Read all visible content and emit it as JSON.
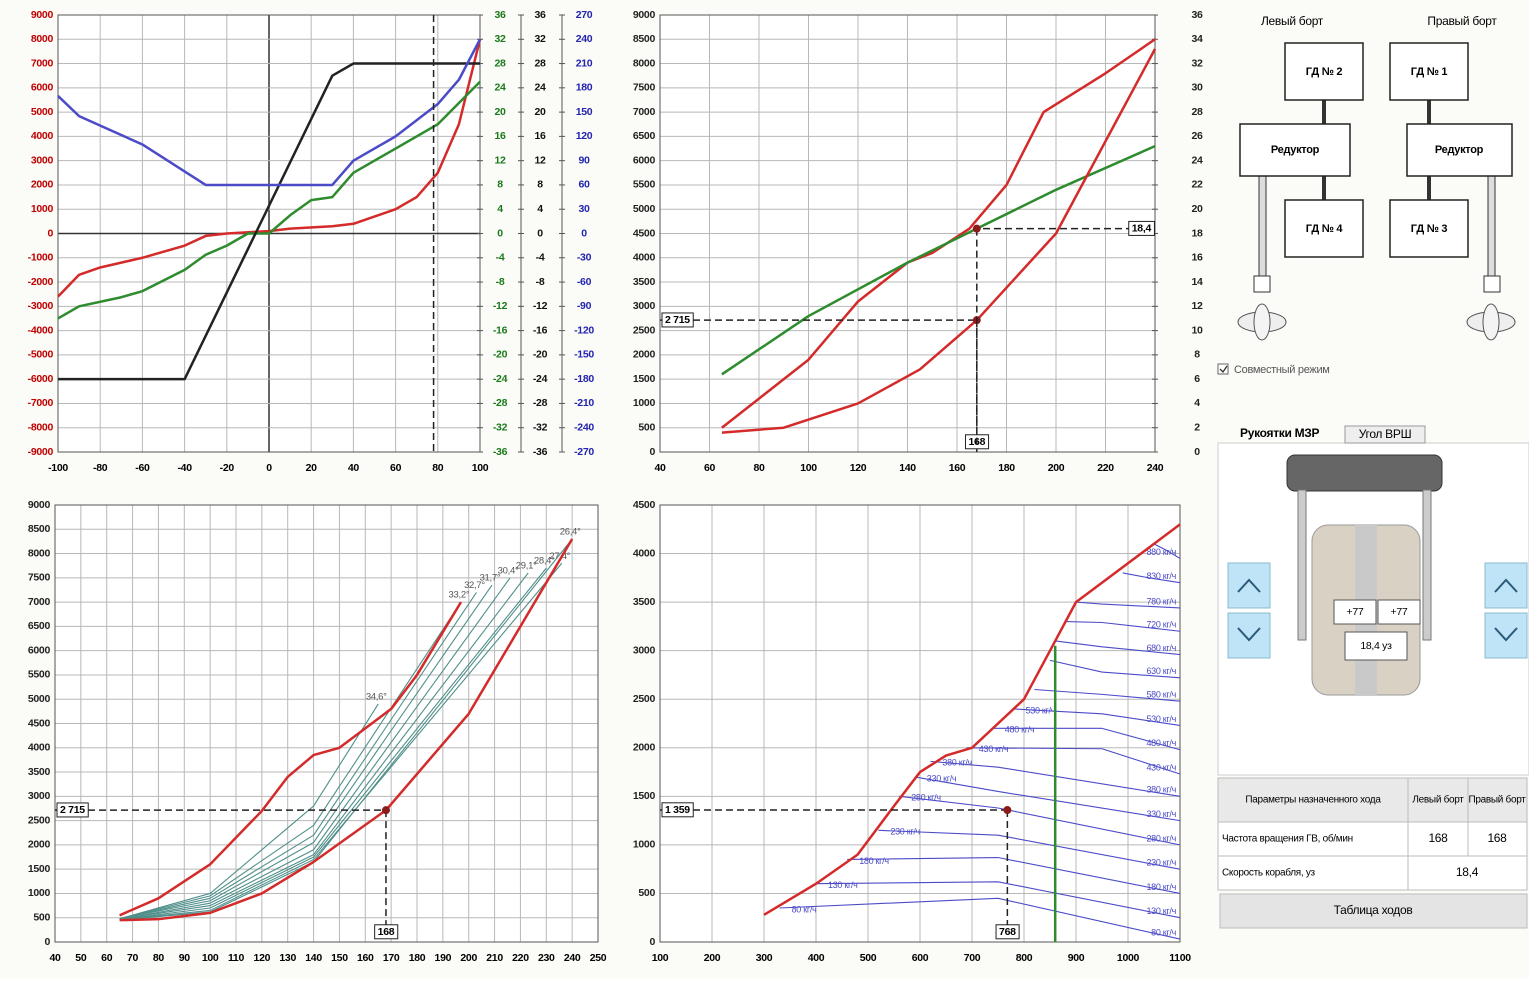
{
  "chart_data": [
    {
      "type": "line",
      "xlim": [
        -100,
        100
      ],
      "xticks": [
        -100,
        -80,
        -60,
        -40,
        -20,
        0,
        20,
        40,
        60,
        80,
        100
      ],
      "ylim": [
        -9000,
        9000
      ],
      "yticks": [
        -9000,
        -8000,
        -7000,
        -6000,
        -5000,
        -4000,
        -3000,
        -2000,
        -1000,
        0,
        1000,
        2000,
        3000,
        4000,
        5000,
        6000,
        7000,
        8000,
        9000
      ],
      "y2lim": [
        -36,
        36
      ],
      "y2ticks": [
        -36,
        -32,
        -28,
        -24,
        -20,
        -16,
        -12,
        -8,
        -4,
        0,
        4,
        8,
        12,
        16,
        20,
        24,
        28,
        32,
        36
      ],
      "y3lim": [
        -36,
        36
      ],
      "y3ticks": [
        -36,
        -32,
        -28,
        -24,
        -20,
        -16,
        -12,
        -8,
        -4,
        0,
        4,
        8,
        12,
        16,
        20,
        24,
        28,
        32,
        36
      ],
      "y4lim": [
        -270,
        270
      ],
      "y4ticks": [
        -270,
        -240,
        -210,
        -180,
        -150,
        -120,
        -90,
        -60,
        -30,
        0,
        30,
        60,
        90,
        120,
        150,
        180,
        210,
        240,
        270
      ],
      "axis_colors": {
        "y": "#c00000",
        "y2": "#1a7a1a",
        "y3": "#111111",
        "y4": "#2323b0"
      },
      "grid": true,
      "zero_lines": true,
      "series": [
        {
          "color": "#d42a2a",
          "x": [
            -100,
            -90,
            -80,
            -60,
            -40,
            -30,
            -20,
            0,
            10,
            30,
            40,
            60,
            70,
            80,
            90,
            100
          ],
          "values": [
            -2600,
            -1700,
            -1400,
            -1000,
            -500,
            -100,
            0,
            100,
            200,
            300,
            400,
            1000,
            1500,
            2500,
            4500,
            8000
          ]
        },
        {
          "color": "#2e8b2e",
          "axis": "y2",
          "x": [
            -100,
            -90,
            -70,
            -60,
            -40,
            -30,
            -20,
            -10,
            0,
            10,
            20,
            30,
            40,
            60,
            80,
            100
          ],
          "values": [
            -14,
            -12,
            -10.5,
            -9.5,
            -6,
            -3.5,
            -2,
            0,
            0,
            3,
            5.5,
            6,
            10,
            14,
            18,
            25
          ]
        },
        {
          "color": "#222222",
          "axis": "y3",
          "x": [
            -100,
            -40,
            30,
            40,
            100
          ],
          "values": [
            -24,
            -24,
            26,
            28,
            28
          ]
        },
        {
          "color": "#4b4bc8",
          "axis": "y4",
          "x": [
            -100,
            -90,
            -60,
            -30,
            30,
            40,
            60,
            80,
            90,
            100
          ],
          "values": [
            170,
            145,
            110,
            60,
            60,
            90,
            120,
            160,
            190,
            240
          ]
        }
      ],
      "annotations": [
        {
          "x": 78
        }
      ]
    },
    {
      "type": "line",
      "xlim": [
        40,
        240
      ],
      "xticks": [
        40,
        60,
        80,
        100,
        120,
        140,
        160,
        180,
        200,
        220,
        240
      ],
      "ylim": [
        0,
        9000
      ],
      "yticks": [
        0,
        500,
        1000,
        1500,
        2000,
        2500,
        3000,
        3500,
        4000,
        4500,
        5000,
        5500,
        6000,
        6500,
        7000,
        7500,
        8000,
        8500,
        9000
      ],
      "y2lim": [
        0,
        36
      ],
      "y2ticks": [
        0,
        2,
        4,
        6,
        8,
        10,
        12,
        14,
        16,
        18,
        20,
        22,
        24,
        26,
        28,
        30,
        32,
        34,
        36
      ],
      "grid": true,
      "series": [
        {
          "color": "#d42a2a",
          "x": [
            65,
            80,
            100,
            120,
            135,
            140,
            150,
            165,
            180,
            195,
            220,
            240
          ],
          "values": [
            500,
            1100,
            1900,
            3100,
            3700,
            3900,
            4100,
            4600,
            5500,
            7000,
            7800,
            8500
          ]
        },
        {
          "color": "#2e8b2e",
          "axis": "y2",
          "x": [
            65,
            100,
            140,
            168,
            200,
            240
          ],
          "values": [
            6.4,
            11.2,
            15.6,
            18.4,
            21.6,
            25.2
          ]
        },
        {
          "color": "#d42a2a",
          "x": [
            65,
            90,
            120,
            145,
            168,
            200,
            240
          ],
          "values": [
            400,
            500,
            1000,
            1700,
            2715,
            4500,
            8300
          ]
        }
      ],
      "annotations": [
        {
          "x": 168,
          "y": 2715,
          "x_label": "168",
          "y_label": "2 715"
        },
        {
          "x": 168,
          "y": 18.4,
          "axis": "y2",
          "y_label": "18,4"
        }
      ]
    },
    {
      "type": "line",
      "xlim": [
        40,
        250
      ],
      "xticks": [
        40,
        50,
        60,
        70,
        80,
        90,
        100,
        110,
        120,
        130,
        140,
        150,
        160,
        170,
        180,
        190,
        200,
        210,
        220,
        230,
        240,
        250
      ],
      "ylim": [
        0,
        9000
      ],
      "yticks": [
        0,
        500,
        1000,
        1500,
        2000,
        2500,
        3000,
        3500,
        4000,
        4500,
        5000,
        5500,
        6000,
        6500,
        7000,
        7500,
        8000,
        8500,
        9000
      ],
      "grid": true,
      "series": [
        {
          "name": "34,6°",
          "color": "#4f8f8a",
          "x": [
            65,
            100,
            140,
            165
          ],
          "values": [
            480,
            1000,
            2800,
            4900
          ]
        },
        {
          "name": "33,2°",
          "color": "#4f8f8a",
          "x": [
            65,
            100,
            140,
            197
          ],
          "values": [
            480,
            950,
            2400,
            7000
          ]
        },
        {
          "name": "32,7°",
          "color": "#4f8f8a",
          "x": [
            65,
            100,
            140,
            203
          ],
          "values": [
            480,
            900,
            2200,
            7200
          ]
        },
        {
          "name": "31,7°",
          "color": "#4f8f8a",
          "x": [
            65,
            100,
            140,
            209
          ],
          "values": [
            480,
            850,
            2050,
            7350
          ]
        },
        {
          "name": "30,4°",
          "color": "#4f8f8a",
          "x": [
            65,
            100,
            140,
            216
          ],
          "values": [
            470,
            800,
            1900,
            7500
          ]
        },
        {
          "name": "29,1°",
          "color": "#4f8f8a",
          "x": [
            65,
            100,
            140,
            223
          ],
          "values": [
            470,
            750,
            1800,
            7600
          ]
        },
        {
          "name": "28,4°",
          "color": "#4f8f8a",
          "x": [
            65,
            100,
            140,
            230
          ],
          "values": [
            460,
            700,
            1750,
            7700
          ]
        },
        {
          "name": "27,4°",
          "color": "#4f8f8a",
          "x": [
            65,
            100,
            140,
            236
          ],
          "values": [
            460,
            650,
            1700,
            7800
          ]
        },
        {
          "name": "26,4°",
          "color": "#4f8f8a",
          "x": [
            65,
            100,
            140,
            240
          ],
          "values": [
            450,
            620,
            1650,
            8300
          ]
        },
        {
          "color": "#d42a2a",
          "x": [
            65,
            80,
            100,
            120,
            130,
            140,
            150,
            170,
            180,
            197
          ],
          "values": [
            550,
            900,
            1600,
            2700,
            3400,
            3850,
            4000,
            4800,
            5500,
            7000
          ]
        },
        {
          "color": "#d42a2a",
          "x": [
            65,
            80,
            100,
            120,
            140,
            168,
            200,
            240
          ],
          "values": [
            450,
            470,
            600,
            1000,
            1650,
            2715,
            4700,
            8300
          ]
        }
      ],
      "annotations": [
        {
          "x": 168,
          "y": 2715,
          "x_label": "168",
          "y_label": "2 715"
        }
      ]
    },
    {
      "type": "line",
      "xlim": [
        100,
        1100
      ],
      "xticks": [
        100,
        200,
        300,
        400,
        500,
        600,
        700,
        800,
        900,
        1000,
        1100
      ],
      "ylim": [
        0,
        4500
      ],
      "yticks": [
        0,
        500,
        1000,
        1500,
        2000,
        2500,
        3000,
        3500,
        4000,
        4500
      ],
      "grid": true,
      "label_starts": true,
      "series": [
        {
          "name": "80 кг/ч",
          "color": "#4b4bc8",
          "x": [
            330,
            750,
            1100
          ],
          "values": [
            350,
            450,
            30
          ]
        },
        {
          "name": "130 кг/ч",
          "color": "#4b4bc8",
          "x": [
            400,
            750,
            1100
          ],
          "values": [
            600,
            620,
            250
          ]
        },
        {
          "name": "180 кг/ч",
          "color": "#4b4bc8",
          "x": [
            460,
            750,
            1100
          ],
          "values": [
            850,
            870,
            500
          ]
        },
        {
          "name": "230 кг/ч",
          "color": "#4b4bc8",
          "x": [
            520,
            750,
            1100
          ],
          "values": [
            1150,
            1100,
            750
          ]
        },
        {
          "name": "280 кг/ч",
          "color": "#4b4bc8",
          "x": [
            560,
            750,
            1100
          ],
          "values": [
            1500,
            1380,
            1000
          ]
        },
        {
          "name": "330 кг/ч",
          "color": "#4b4bc8",
          "x": [
            590,
            750,
            1100
          ],
          "values": [
            1700,
            1550,
            1250
          ]
        },
        {
          "name": "380 кг/ч",
          "color": "#4b4bc8",
          "x": [
            620,
            750,
            1100
          ],
          "values": [
            1860,
            1800,
            1500
          ]
        },
        {
          "name": "430 кг/ч",
          "color": "#4b4bc8",
          "x": [
            690,
            950,
            1100
          ],
          "values": [
            2000,
            1990,
            1730
          ]
        },
        {
          "name": "480 кг/ч",
          "color": "#4b4bc8",
          "x": [
            740,
            950,
            1100
          ],
          "values": [
            2200,
            2200,
            1980
          ]
        },
        {
          "name": "530 кг/ч",
          "color": "#4b4bc8",
          "x": [
            780,
            950,
            1100
          ],
          "values": [
            2400,
            2350,
            2230
          ]
        },
        {
          "name": "580 кг/ч",
          "color": "#4b4bc8",
          "x": [
            820,
            950,
            1100
          ],
          "values": [
            2600,
            2550,
            2480
          ]
        },
        {
          "name": "630 кг/ч",
          "color": "#4b4bc8",
          "x": [
            850,
            950,
            1100
          ],
          "values": [
            2900,
            2780,
            2720
          ]
        },
        {
          "name": "680 кг/ч",
          "color": "#4b4bc8",
          "x": [
            860,
            950,
            1100
          ],
          "values": [
            3100,
            3040,
            2960
          ]
        },
        {
          "name": "720 кг/ч",
          "color": "#4b4bc8",
          "x": [
            880,
            950,
            1100
          ],
          "values": [
            3300,
            3290,
            3200
          ]
        },
        {
          "name": "780 кг/ч",
          "color": "#4b4bc8",
          "x": [
            900,
            950,
            1100
          ],
          "values": [
            3500,
            3480,
            3440
          ]
        },
        {
          "name": "830 кг/ч",
          "color": "#4b4bc8",
          "x": [
            990,
            1040,
            1100
          ],
          "values": [
            3800,
            3750,
            3700
          ]
        },
        {
          "name": "880 кг/ч",
          "color": "#4b4bc8",
          "x": [
            1050,
            1075,
            1100
          ],
          "values": [
            4100,
            4030,
            3950
          ]
        },
        {
          "color": "#2e8b2e",
          "x": [
            860,
            860
          ],
          "values": [
            0,
            3050
          ]
        },
        {
          "color": "#d42a2a",
          "x": [
            300,
            400,
            480,
            550,
            600,
            650,
            700,
            750,
            800,
            850,
            900,
            1000,
            1100
          ],
          "values": [
            280,
            600,
            900,
            1400,
            1750,
            1920,
            2000,
            2250,
            2500,
            3000,
            3500,
            3900,
            4300
          ]
        }
      ],
      "annotations": [
        {
          "x": 768,
          "y": 1359,
          "x_label": "768",
          "y_label": "1 359"
        }
      ]
    }
  ],
  "panel": {
    "left_side": "Левый борт",
    "right_side": "Правый борт",
    "boxes": [
      "ГД № 2",
      "ГД № 1",
      "Редуктор",
      "Редуктор",
      "ГД № 4",
      "ГД № 3"
    ],
    "checkbox": "Совместный режим",
    "tabs": [
      "Рукоятки МЗР",
      "Угол ВРШ"
    ],
    "lever_left": "+77",
    "lever_right": "+77",
    "speed": "18,4 уз",
    "table": {
      "header": [
        "Параметры назначенного хода",
        "Левый борт",
        "Правый борт"
      ],
      "rows": [
        [
          "Частота вращения ГВ, об/мин",
          168,
          168
        ],
        [
          "Скорость корабля, уз",
          "18,4"
        ]
      ]
    },
    "button": "Таблица ходов"
  }
}
